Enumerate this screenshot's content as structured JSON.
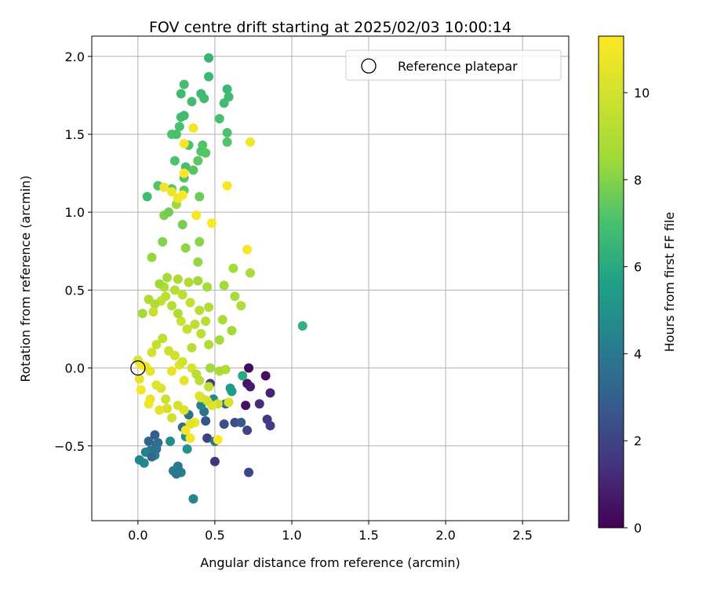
{
  "chart_data": {
    "type": "scatter",
    "title": "FOV centre drift starting at 2025/02/03 10:00:14",
    "xlabel": "Angular distance from reference (arcmin)",
    "ylabel": "Rotation from reference (arcmin)",
    "xlim": [
      -0.3,
      2.8
    ],
    "ylim": [
      -0.98,
      2.13
    ],
    "xticks": [
      0.0,
      0.5,
      1.0,
      1.5,
      2.0,
      2.5
    ],
    "xtick_labels": [
      "0.0",
      "0.5",
      "1.0",
      "1.5",
      "2.0",
      "2.5"
    ],
    "yticks": [
      -0.5,
      0.0,
      0.5,
      1.0,
      1.5,
      2.0
    ],
    "ytick_labels": [
      "−0.5",
      "0.0",
      "0.5",
      "1.0",
      "1.5",
      "2.0"
    ],
    "grid": true,
    "legend": {
      "placement": "top-right",
      "entries": [
        "Reference platepar"
      ]
    },
    "reference_point": {
      "x": 0.0,
      "y": 0.0,
      "label": "Reference platepar"
    },
    "colorbar": {
      "label": "Hours from first FF file",
      "colormap": "viridis",
      "range": [
        0,
        11.3
      ],
      "ticks": [
        0,
        2,
        4,
        6,
        8,
        10
      ],
      "tick_labels": [
        "0",
        "2",
        "4",
        "6",
        "8",
        "10"
      ]
    },
    "points": [
      {
        "x": 0.72,
        "y": 0.0,
        "h": 0.3
      },
      {
        "x": 0.83,
        "y": -0.05,
        "h": 0.4
      },
      {
        "x": 0.71,
        "y": -0.1,
        "h": 0.6
      },
      {
        "x": 0.73,
        "y": -0.12,
        "h": 0.8
      },
      {
        "x": 0.86,
        "y": -0.16,
        "h": 1.0
      },
      {
        "x": 0.79,
        "y": -0.23,
        "h": 1.3
      },
      {
        "x": 0.7,
        "y": -0.24,
        "h": 0.5
      },
      {
        "x": 0.84,
        "y": -0.33,
        "h": 1.6
      },
      {
        "x": 0.86,
        "y": -0.37,
        "h": 1.8
      },
      {
        "x": 0.71,
        "y": -0.4,
        "h": 2.0
      },
      {
        "x": 0.72,
        "y": -0.67,
        "h": 2.2
      },
      {
        "x": 0.5,
        "y": -0.6,
        "h": 1.5
      },
      {
        "x": 0.47,
        "y": -0.1,
        "h": 1.8
      },
      {
        "x": 0.45,
        "y": -0.45,
        "h": 1.9
      },
      {
        "x": 0.56,
        "y": -0.36,
        "h": 2.4
      },
      {
        "x": 0.63,
        "y": -0.35,
        "h": 2.3
      },
      {
        "x": 0.67,
        "y": -0.35,
        "h": 2.8
      },
      {
        "x": 0.44,
        "y": -0.34,
        "h": 2.6
      },
      {
        "x": 0.57,
        "y": -0.23,
        "h": 3.5
      },
      {
        "x": 0.49,
        "y": -0.2,
        "h": 4.6
      },
      {
        "x": 0.6,
        "y": -0.13,
        "h": 5.5
      },
      {
        "x": 0.61,
        "y": -0.15,
        "h": 5.4
      },
      {
        "x": 0.68,
        "y": -0.05,
        "h": 6.0
      },
      {
        "x": 0.5,
        "y": -0.47,
        "h": 4.0
      },
      {
        "x": 0.43,
        "y": -0.28,
        "h": 3.8
      },
      {
        "x": 0.42,
        "y": -0.2,
        "h": 4.2
      },
      {
        "x": 0.41,
        "y": -0.24,
        "h": 4.4
      },
      {
        "x": 0.33,
        "y": -0.3,
        "h": 3.6
      },
      {
        "x": 0.29,
        "y": -0.38,
        "h": 3.4
      },
      {
        "x": 0.31,
        "y": -0.44,
        "h": 4.8
      },
      {
        "x": 0.32,
        "y": -0.52,
        "h": 5.1
      },
      {
        "x": 0.36,
        "y": -0.84,
        "h": 4.5
      },
      {
        "x": 0.28,
        "y": -0.67,
        "h": 4.2
      },
      {
        "x": 0.26,
        "y": -0.63,
        "h": 4.0
      },
      {
        "x": 0.23,
        "y": -0.66,
        "h": 4.1
      },
      {
        "x": 0.25,
        "y": -0.68,
        "h": 3.9
      },
      {
        "x": 0.12,
        "y": -0.5,
        "h": 3.0
      },
      {
        "x": 0.11,
        "y": -0.43,
        "h": 2.8
      },
      {
        "x": 0.07,
        "y": -0.47,
        "h": 3.2
      },
      {
        "x": 0.1,
        "y": -0.54,
        "h": 3.4
      },
      {
        "x": 0.13,
        "y": -0.48,
        "h": 3.6
      },
      {
        "x": 0.08,
        "y": -0.53,
        "h": 3.8
      },
      {
        "x": 0.05,
        "y": -0.54,
        "h": 4.2
      },
      {
        "x": 0.11,
        "y": -0.56,
        "h": 4.4
      },
      {
        "x": 0.09,
        "y": -0.57,
        "h": 3.3
      },
      {
        "x": 0.04,
        "y": -0.61,
        "h": 4.6
      },
      {
        "x": 0.01,
        "y": -0.59,
        "h": 4.4
      },
      {
        "x": 0.21,
        "y": -0.47,
        "h": 4.8
      },
      {
        "x": 0.12,
        "y": -0.52,
        "h": 3.7
      },
      {
        "x": 0.47,
        "y": 0.0,
        "h": 8.5
      },
      {
        "x": 0.53,
        "y": -0.02,
        "h": 8.8
      },
      {
        "x": 0.57,
        "y": -0.01,
        "h": 9.0
      },
      {
        "x": 0.4,
        "y": -0.08,
        "h": 9.2
      },
      {
        "x": 0.46,
        "y": -0.12,
        "h": 9.5
      },
      {
        "x": 0.52,
        "y": -0.23,
        "h": 9.8
      },
      {
        "x": 0.59,
        "y": -0.22,
        "h": 10.2
      },
      {
        "x": 0.48,
        "y": -0.24,
        "h": 10.4
      },
      {
        "x": 0.4,
        "y": -0.18,
        "h": 10.6
      },
      {
        "x": 0.37,
        "y": -0.35,
        "h": 10.8
      },
      {
        "x": 0.34,
        "y": -0.36,
        "h": 10.5
      },
      {
        "x": 0.31,
        "y": -0.4,
        "h": 10.9
      },
      {
        "x": 0.34,
        "y": -0.45,
        "h": 11.0
      },
      {
        "x": 0.52,
        "y": -0.46,
        "h": 11.2
      },
      {
        "x": 0.3,
        "y": -0.27,
        "h": 10.3
      },
      {
        "x": 0.26,
        "y": -0.24,
        "h": 10.0
      },
      {
        "x": 0.22,
        "y": -0.32,
        "h": 9.9
      },
      {
        "x": 0.19,
        "y": -0.26,
        "h": 10.1
      },
      {
        "x": 0.18,
        "y": -0.2,
        "h": 9.7
      },
      {
        "x": 0.15,
        "y": -0.13,
        "h": 10.3
      },
      {
        "x": 0.12,
        "y": -0.11,
        "h": 10.5
      },
      {
        "x": 0.08,
        "y": -0.2,
        "h": 10.7
      },
      {
        "x": 0.07,
        "y": -0.23,
        "h": 10.9
      },
      {
        "x": 0.02,
        "y": -0.14,
        "h": 11.1
      },
      {
        "x": 0.01,
        "y": -0.07,
        "h": 10.6
      },
      {
        "x": 0.05,
        "y": 0.01,
        "h": 10.8
      },
      {
        "x": 0.0,
        "y": 0.05,
        "h": 10.2
      },
      {
        "x": 0.09,
        "y": 0.1,
        "h": 10.0
      },
      {
        "x": 0.12,
        "y": 0.15,
        "h": 9.6
      },
      {
        "x": 0.16,
        "y": 0.19,
        "h": 9.4
      },
      {
        "x": 0.2,
        "y": 0.11,
        "h": 9.8
      },
      {
        "x": 0.24,
        "y": 0.08,
        "h": 9.9
      },
      {
        "x": 0.27,
        "y": 0.02,
        "h": 10.4
      },
      {
        "x": 0.35,
        "y": 0.0,
        "h": 10.2
      },
      {
        "x": 0.29,
        "y": 0.04,
        "h": 10.0
      },
      {
        "x": 0.22,
        "y": -0.02,
        "h": 10.7
      },
      {
        "x": 0.3,
        "y": -0.08,
        "h": 10.6
      },
      {
        "x": 0.38,
        "y": -0.04,
        "h": 9.3
      },
      {
        "x": 0.35,
        "y": 0.13,
        "h": 9.1
      },
      {
        "x": 0.41,
        "y": 0.22,
        "h": 9.3
      },
      {
        "x": 0.46,
        "y": 0.15,
        "h": 9.0
      },
      {
        "x": 0.53,
        "y": 0.18,
        "h": 8.7
      },
      {
        "x": 0.61,
        "y": 0.24,
        "h": 8.5
      },
      {
        "x": 0.55,
        "y": 0.31,
        "h": 8.8
      },
      {
        "x": 0.44,
        "y": 0.3,
        "h": 9.2
      },
      {
        "x": 0.37,
        "y": 0.28,
        "h": 9.4
      },
      {
        "x": 0.32,
        "y": 0.25,
        "h": 9.6
      },
      {
        "x": 0.28,
        "y": 0.3,
        "h": 9.8
      },
      {
        "x": 0.26,
        "y": 0.35,
        "h": 9.0
      },
      {
        "x": 0.22,
        "y": 0.4,
        "h": 9.1
      },
      {
        "x": 0.18,
        "y": 0.46,
        "h": 9.3
      },
      {
        "x": 0.15,
        "y": 0.43,
        "h": 9.5
      },
      {
        "x": 0.11,
        "y": 0.41,
        "h": 9.0
      },
      {
        "x": 0.07,
        "y": 0.44,
        "h": 8.9
      },
      {
        "x": 0.1,
        "y": 0.36,
        "h": 9.7
      },
      {
        "x": 0.03,
        "y": 0.35,
        "h": 8.6
      },
      {
        "x": 0.17,
        "y": 0.52,
        "h": 8.9
      },
      {
        "x": 0.24,
        "y": 0.5,
        "h": 9.1
      },
      {
        "x": 0.29,
        "y": 0.47,
        "h": 9.3
      },
      {
        "x": 0.34,
        "y": 0.42,
        "h": 9.5
      },
      {
        "x": 0.4,
        "y": 0.37,
        "h": 9.2
      },
      {
        "x": 0.46,
        "y": 0.39,
        "h": 9.0
      },
      {
        "x": 0.45,
        "y": 0.52,
        "h": 8.7
      },
      {
        "x": 0.39,
        "y": 0.56,
        "h": 8.5
      },
      {
        "x": 0.33,
        "y": 0.55,
        "h": 9.0
      },
      {
        "x": 0.26,
        "y": 0.57,
        "h": 8.8
      },
      {
        "x": 0.19,
        "y": 0.58,
        "h": 8.6
      },
      {
        "x": 0.14,
        "y": 0.54,
        "h": 8.4
      },
      {
        "x": 0.56,
        "y": 0.53,
        "h": 8.5
      },
      {
        "x": 0.63,
        "y": 0.46,
        "h": 8.7
      },
      {
        "x": 0.67,
        "y": 0.4,
        "h": 9.0
      },
      {
        "x": 0.62,
        "y": 0.64,
        "h": 8.6
      },
      {
        "x": 0.73,
        "y": 0.61,
        "h": 8.8
      },
      {
        "x": 0.09,
        "y": 0.71,
        "h": 8.3
      },
      {
        "x": 0.16,
        "y": 0.81,
        "h": 8.0
      },
      {
        "x": 0.31,
        "y": 0.77,
        "h": 8.2
      },
      {
        "x": 0.4,
        "y": 0.81,
        "h": 8.1
      },
      {
        "x": 0.39,
        "y": 0.68,
        "h": 8.3
      },
      {
        "x": 0.17,
        "y": 0.98,
        "h": 7.9
      },
      {
        "x": 0.29,
        "y": 0.92,
        "h": 7.8
      },
      {
        "x": 0.2,
        "y": 1.0,
        "h": 7.7
      },
      {
        "x": 0.25,
        "y": 1.05,
        "h": 8.4
      },
      {
        "x": 0.3,
        "y": 1.14,
        "h": 7.4
      },
      {
        "x": 0.22,
        "y": 1.15,
        "h": 7.3
      },
      {
        "x": 0.13,
        "y": 1.17,
        "h": 7.2
      },
      {
        "x": 0.06,
        "y": 1.1,
        "h": 6.8
      },
      {
        "x": 0.4,
        "y": 1.1,
        "h": 7.6
      },
      {
        "x": 0.24,
        "y": 1.33,
        "h": 7.1
      },
      {
        "x": 0.31,
        "y": 1.29,
        "h": 7.0
      },
      {
        "x": 0.36,
        "y": 1.27,
        "h": 7.3
      },
      {
        "x": 0.39,
        "y": 1.33,
        "h": 7.4
      },
      {
        "x": 0.3,
        "y": 1.22,
        "h": 7.2
      },
      {
        "x": 0.33,
        "y": 1.43,
        "h": 7.0
      },
      {
        "x": 0.42,
        "y": 1.43,
        "h": 7.2
      },
      {
        "x": 0.41,
        "y": 1.39,
        "h": 7.1
      },
      {
        "x": 0.44,
        "y": 1.38,
        "h": 7.3
      },
      {
        "x": 0.22,
        "y": 1.5,
        "h": 7.1
      },
      {
        "x": 0.27,
        "y": 1.55,
        "h": 7.0
      },
      {
        "x": 0.28,
        "y": 1.61,
        "h": 6.9
      },
      {
        "x": 0.3,
        "y": 1.62,
        "h": 6.8
      },
      {
        "x": 0.35,
        "y": 1.71,
        "h": 6.9
      },
      {
        "x": 0.28,
        "y": 1.76,
        "h": 6.8
      },
      {
        "x": 0.3,
        "y": 1.82,
        "h": 6.9
      },
      {
        "x": 0.41,
        "y": 1.76,
        "h": 6.7
      },
      {
        "x": 0.43,
        "y": 1.73,
        "h": 6.8
      },
      {
        "x": 0.46,
        "y": 1.87,
        "h": 6.6
      },
      {
        "x": 0.46,
        "y": 1.99,
        "h": 6.5
      },
      {
        "x": 0.58,
        "y": 1.79,
        "h": 6.6
      },
      {
        "x": 0.59,
        "y": 1.74,
        "h": 6.7
      },
      {
        "x": 0.56,
        "y": 1.7,
        "h": 6.8
      },
      {
        "x": 0.53,
        "y": 1.6,
        "h": 7.0
      },
      {
        "x": 0.58,
        "y": 1.51,
        "h": 7.1
      },
      {
        "x": 0.58,
        "y": 1.45,
        "h": 7.2
      },
      {
        "x": 0.25,
        "y": 1.5,
        "h": 7.0
      },
      {
        "x": 1.07,
        "y": 0.27,
        "h": 6.3
      },
      {
        "x": 0.36,
        "y": 1.54,
        "h": 11.0
      },
      {
        "x": 0.3,
        "y": 1.44,
        "h": 11.1
      },
      {
        "x": 0.73,
        "y": 1.45,
        "h": 11.0
      },
      {
        "x": 0.58,
        "y": 1.17,
        "h": 11.1
      },
      {
        "x": 0.3,
        "y": 1.25,
        "h": 11.2
      },
      {
        "x": 0.17,
        "y": 1.16,
        "h": 10.9
      },
      {
        "x": 0.22,
        "y": 1.13,
        "h": 10.8
      },
      {
        "x": 0.26,
        "y": 1.09,
        "h": 11.0
      },
      {
        "x": 0.29,
        "y": 1.11,
        "h": 11.2
      },
      {
        "x": 0.38,
        "y": 0.98,
        "h": 11.1
      },
      {
        "x": 0.48,
        "y": 0.93,
        "h": 11.2
      },
      {
        "x": 0.71,
        "y": 0.76,
        "h": 11.1
      },
      {
        "x": 0.45,
        "y": -0.21,
        "h": 10.1
      },
      {
        "x": 0.41,
        "y": -0.19,
        "h": 10.3
      },
      {
        "x": 0.14,
        "y": -0.27,
        "h": 10.5
      },
      {
        "x": 0.08,
        "y": -0.02,
        "h": 10.6
      },
      {
        "x": 0.02,
        "y": 0.02,
        "h": 11.0
      }
    ]
  }
}
